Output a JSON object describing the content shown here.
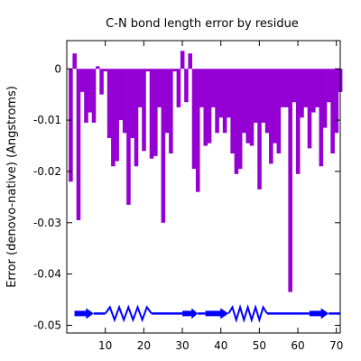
{
  "chart_data": {
    "type": "bar",
    "title": "C-N bond length error by residue",
    "xlabel": "",
    "ylabel": "Error (denovo-native) (Angstroms)",
    "xlim": [
      0,
      71
    ],
    "ylim": [
      -0.0515,
      0.0055
    ],
    "x_ticks": [
      10,
      20,
      30,
      40,
      50,
      60,
      70
    ],
    "y_ticks": [
      0,
      -0.01,
      -0.02,
      -0.03,
      -0.04,
      -0.05
    ],
    "y_tick_labels": [
      "0",
      "-0.01",
      "-0.02",
      "-0.03",
      "-0.04",
      "-0.05"
    ],
    "grid": false,
    "bar_color": "#9400d3",
    "ss_color": "#0000ff",
    "series": [
      {
        "x": [
          1,
          2,
          3,
          4,
          5,
          6,
          7,
          8,
          9,
          10,
          11,
          12,
          13,
          14,
          15,
          16,
          17,
          18,
          19,
          20,
          21,
          22,
          23,
          24,
          25,
          26,
          27,
          28,
          29,
          30,
          31,
          32,
          33,
          34,
          35,
          36,
          37,
          38,
          39,
          40,
          41,
          42,
          43,
          44,
          45,
          46,
          47,
          48,
          49,
          50,
          51,
          52,
          53,
          54,
          55,
          56,
          57,
          58,
          59,
          60,
          61,
          62,
          63,
          64,
          65,
          66,
          67,
          68,
          69,
          70,
          71
        ],
        "values": [
          -0.022,
          0.003,
          -0.0295,
          -0.0045,
          -0.0105,
          -0.0085,
          -0.0105,
          0.0005,
          -0.005,
          -0.0005,
          -0.0135,
          -0.019,
          -0.018,
          -0.01,
          -0.0125,
          -0.0265,
          -0.0135,
          -0.019,
          -0.0075,
          -0.016,
          -0.0005,
          -0.0175,
          -0.017,
          -0.0075,
          -0.03,
          -0.0125,
          -0.0165,
          -0.0005,
          -0.0075,
          0.0035,
          -0.0065,
          0.003,
          -0.0195,
          -0.024,
          -0.0075,
          -0.015,
          -0.0145,
          -0.0075,
          -0.0125,
          -0.0095,
          -0.0125,
          -0.0095,
          -0.0165,
          -0.0205,
          -0.0195,
          -0.0125,
          -0.0145,
          -0.015,
          -0.0105,
          -0.0235,
          -0.0105,
          -0.0125,
          -0.0185,
          -0.0145,
          -0.0165,
          -0.0075,
          -0.0075,
          -0.0435,
          -0.0065,
          -0.0205,
          -0.0095,
          -0.0075,
          -0.0155,
          -0.0085,
          -0.0075,
          -0.019,
          -0.0115,
          -0.0065,
          -0.0165,
          -0.0125,
          -0.0045
        ]
      }
    ],
    "secondary_structure": [
      {
        "type": "strand",
        "start": 2,
        "end": 7
      },
      {
        "type": "loop",
        "start": 7,
        "end": 10
      },
      {
        "type": "helix",
        "start": 10,
        "end": 22
      },
      {
        "type": "loop",
        "start": 22,
        "end": 30
      },
      {
        "type": "strand",
        "start": 30,
        "end": 34
      },
      {
        "type": "loop",
        "start": 34,
        "end": 36
      },
      {
        "type": "strand",
        "start": 36,
        "end": 42
      },
      {
        "type": "helix",
        "start": 42,
        "end": 52
      },
      {
        "type": "loop",
        "start": 52,
        "end": 63
      },
      {
        "type": "strand",
        "start": 63,
        "end": 68
      },
      {
        "type": "loop",
        "start": 68,
        "end": 71
      }
    ]
  }
}
